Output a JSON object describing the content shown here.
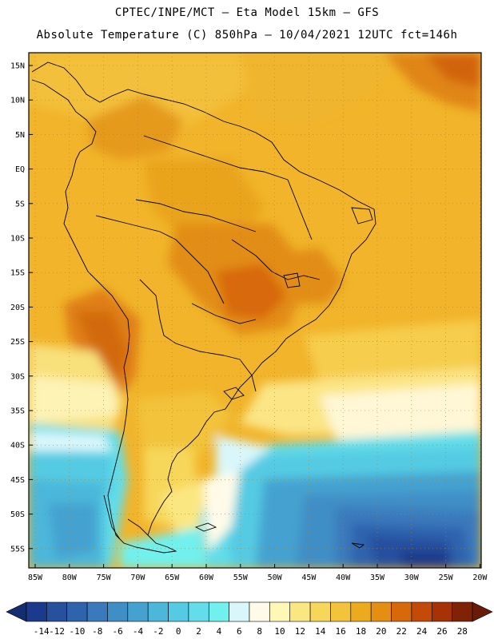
{
  "header": {
    "line1": "CPTEC/INPE/MCT –  Eta Model 15km – GFS",
    "line2": "Absolute Temperature (C) 850hPa – 10/04/2021 12UTC fct=146h"
  },
  "axes": {
    "lat_labels": [
      "15N",
      "10N",
      "5N",
      "EQ",
      "5S",
      "10S",
      "15S",
      "20S",
      "25S",
      "30S",
      "35S",
      "40S",
      "45S",
      "50S",
      "55S"
    ],
    "lon_labels": [
      "85W",
      "80W",
      "75W",
      "70W",
      "65W",
      "60W",
      "55W",
      "50W",
      "45W",
      "40W",
      "35W",
      "30W",
      "25W",
      "20W"
    ]
  },
  "colorbar": {
    "labels": [
      "-14",
      "-12",
      "-10",
      "-8",
      "-6",
      "-4",
      "-2",
      "0",
      "2",
      "4",
      "6",
      "8",
      "10",
      "12",
      "14",
      "16",
      "18",
      "20",
      "22",
      "24",
      "26",
      "28"
    ],
    "colors": [
      "#1b3a8c",
      "#27509f",
      "#2f64ad",
      "#3a79bb",
      "#3f8ec6",
      "#45a2d0",
      "#4cb7da",
      "#54cbe3",
      "#62dde9",
      "#71f0ee",
      "#d9f7fb",
      "#fffbe8",
      "#fff7b5",
      "#fbe782",
      "#f7d75a",
      "#f2c33b",
      "#ecab1f",
      "#e48e12",
      "#d8690b",
      "#c44a08",
      "#a53306",
      "#7f2205"
    ],
    "under_color": "#142c70",
    "over_color": "#6a1a0a"
  },
  "map": {
    "background": "#f1b42a"
  }
}
